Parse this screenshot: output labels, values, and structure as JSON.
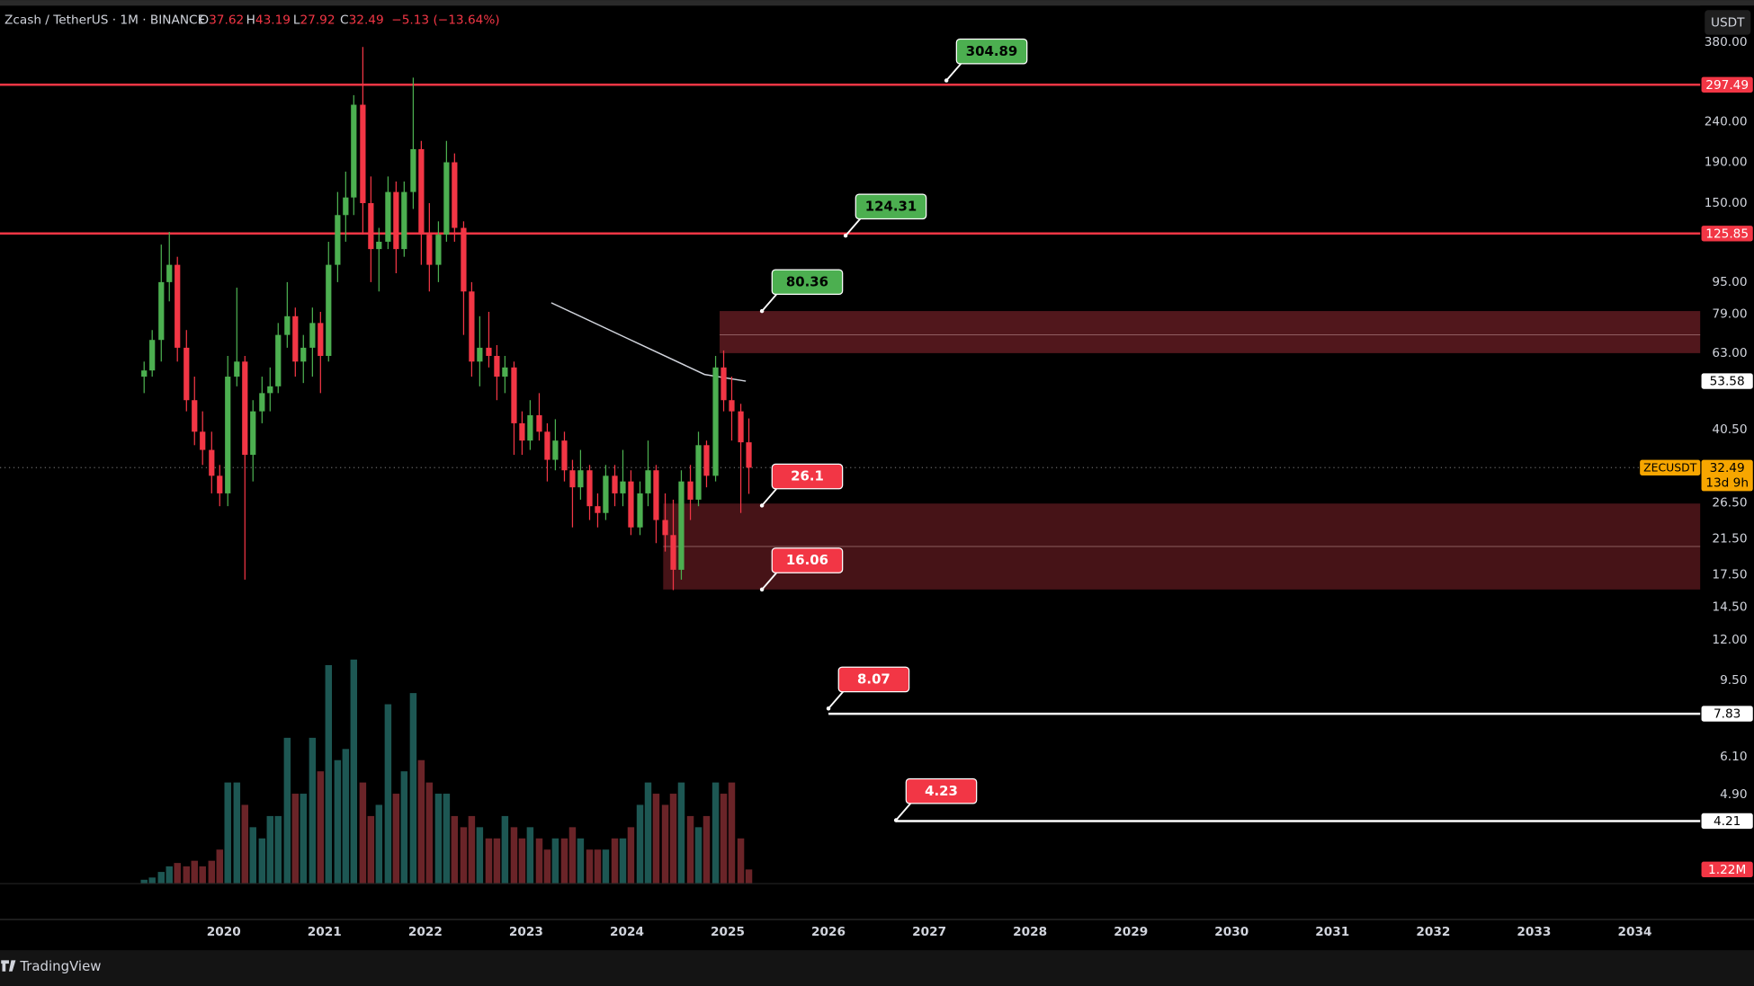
{
  "header": {
    "symbol": "Zcash / TetherUS · 1M · BINANCE",
    "ohlc": [
      {
        "key": "O",
        "value": 37.62
      },
      {
        "key": "H",
        "value": 43.19
      },
      {
        "key": "L",
        "value": 27.92
      },
      {
        "key": "C",
        "value": 32.49
      }
    ],
    "change": "−5.13 (−13.64%)"
  },
  "currency_button": "USDT",
  "brand": "TradingView",
  "chart_data": {
    "type": "candlestick",
    "x": [
      2019.21,
      2019.29,
      2019.38,
      2019.46,
      2019.54,
      2019.63,
      2019.71,
      2019.79,
      2019.88,
      2019.96,
      2020.04,
      2020.13,
      2020.21,
      2020.29,
      2020.38,
      2020.46,
      2020.54,
      2020.63,
      2020.71,
      2020.79,
      2020.88,
      2020.96,
      2021.04,
      2021.13,
      2021.21,
      2021.29,
      2021.38,
      2021.46,
      2021.54,
      2021.63,
      2021.71,
      2021.79,
      2021.88,
      2021.96,
      2022.04,
      2022.13,
      2022.21,
      2022.29,
      2022.38,
      2022.46,
      2022.54,
      2022.63,
      2022.71,
      2022.79,
      2022.88,
      2022.96,
      2023.04,
      2023.13,
      2023.21,
      2023.29,
      2023.38,
      2023.46,
      2023.54,
      2023.63,
      2023.71,
      2023.79,
      2023.88,
      2023.96,
      2024.04,
      2024.13,
      2024.21,
      2024.29,
      2024.38,
      2024.46,
      2024.54,
      2024.63,
      2024.71,
      2024.79,
      2024.88,
      2024.96,
      2025.04,
      2025.13,
      2025.21
    ],
    "open": [
      55,
      57,
      68,
      95,
      105,
      65,
      48,
      40,
      36,
      31,
      28,
      55,
      60,
      35,
      45,
      50,
      52,
      70,
      78,
      60,
      65,
      75,
      62,
      105,
      140,
      155,
      265,
      150,
      115,
      120,
      160,
      115,
      160,
      205,
      125,
      105,
      125,
      190,
      130,
      90,
      60,
      65,
      62,
      55,
      58,
      42,
      38,
      44,
      40,
      34,
      38,
      32,
      29,
      32,
      26,
      25,
      31,
      28,
      30,
      23,
      28,
      32,
      24,
      22,
      18,
      30,
      27,
      37,
      31,
      58,
      48,
      45,
      37.62
    ],
    "high": [
      60,
      72,
      118,
      127,
      110,
      72,
      55,
      45,
      40,
      33,
      62,
      92,
      62,
      48,
      55,
      58,
      75,
      95,
      82,
      70,
      82,
      80,
      120,
      160,
      180,
      280,
      370,
      175,
      130,
      175,
      170,
      170,
      310,
      215,
      150,
      135,
      215,
      200,
      135,
      95,
      78,
      80,
      66,
      62,
      60,
      45,
      48,
      50,
      42,
      43,
      40,
      34,
      36,
      33,
      28,
      33,
      33,
      36,
      32,
      30,
      38,
      33,
      28,
      27,
      32,
      33,
      40,
      38,
      62,
      64,
      55,
      47,
      43.19
    ],
    "low": [
      50,
      55,
      60,
      85,
      60,
      45,
      37,
      33,
      28,
      26,
      26,
      52,
      17,
      30,
      42,
      45,
      50,
      65,
      55,
      53,
      55,
      50,
      60,
      95,
      120,
      140,
      125,
      95,
      90,
      115,
      100,
      110,
      145,
      105,
      90,
      95,
      120,
      120,
      70,
      55,
      52,
      58,
      48,
      50,
      35,
      35,
      36,
      38,
      30,
      32,
      30,
      23,
      27,
      24,
      23,
      24,
      26,
      26,
      22,
      22,
      26,
      21,
      20,
      16,
      17,
      24,
      26,
      29,
      30,
      45,
      38,
      25,
      27.92
    ],
    "close": [
      57,
      68,
      95,
      105,
      65,
      48,
      40,
      36,
      31,
      28,
      55,
      60,
      35,
      45,
      50,
      52,
      70,
      78,
      60,
      65,
      75,
      62,
      105,
      140,
      155,
      265,
      150,
      115,
      120,
      160,
      115,
      160,
      205,
      125,
      105,
      125,
      190,
      130,
      90,
      60,
      65,
      62,
      55,
      58,
      42,
      38,
      44,
      40,
      34,
      38,
      32,
      29,
      32,
      26,
      25,
      31,
      28,
      30,
      23,
      28,
      32,
      24,
      22,
      18,
      30,
      27,
      37,
      31,
      58,
      48,
      45,
      37.62,
      32.49
    ],
    "up_color": "#4caf50",
    "down_color": "#f23645",
    "volume": {
      "values": [
        0.3,
        0.5,
        1,
        1.5,
        1.8,
        1.5,
        2,
        1.5,
        2,
        3,
        9,
        9,
        7,
        5,
        4,
        6,
        6,
        13,
        8,
        8,
        13,
        10,
        19.5,
        11,
        12,
        20,
        9,
        6,
        7,
        16,
        8,
        10,
        17,
        11,
        9,
        8,
        8,
        6,
        5,
        6,
        5,
        4,
        4,
        6,
        5,
        4,
        5,
        4,
        3,
        4,
        4,
        5,
        4,
        3,
        3,
        3,
        4,
        4,
        5,
        7,
        9,
        8,
        7,
        8,
        9,
        6,
        5,
        6,
        9,
        8,
        9,
        4,
        1.22
      ],
      "last_value_label": "1.22M",
      "vlim": [
        0,
        20
      ],
      "up_color": "#1d5753",
      "down_color": "#6a2428",
      "label_color": "#f23645"
    },
    "xlim": [
      2017.78,
      2034.65
    ],
    "xticks": [
      2020,
      2021,
      2022,
      2023,
      2024,
      2025,
      2026,
      2027,
      2028,
      2029,
      2030,
      2031,
      2032,
      2033,
      2034
    ],
    "ylim": [
      2.94,
      470
    ],
    "log_y": true,
    "yticks": [
      {
        "value": 380,
        "label": "380.00"
      },
      {
        "value": 240,
        "label": "240.00"
      },
      {
        "value": 190,
        "label": "190.00"
      },
      {
        "value": 150,
        "label": "150.00"
      },
      {
        "value": 95,
        "label": "95.00"
      },
      {
        "value": 79,
        "label": "79.00"
      },
      {
        "value": 63,
        "label": "63.00"
      },
      {
        "value": 40.5,
        "label": "40.50"
      },
      {
        "value": 26.5,
        "label": "26.50"
      },
      {
        "value": 21.5,
        "label": "21.50"
      },
      {
        "value": 17.5,
        "label": "17.50"
      },
      {
        "value": 14.5,
        "label": "14.50"
      },
      {
        "value": 12,
        "label": "12.00"
      },
      {
        "value": 9.5,
        "label": "9.50"
      },
      {
        "value": 6.1,
        "label": "6.10"
      },
      {
        "value": 4.9,
        "label": "4.90"
      }
    ],
    "levels": [
      {
        "value": 297.49,
        "color": "#f23645",
        "text_color": "#ffffff",
        "x_start": 2017.78
      },
      {
        "value": 125.85,
        "color": "#f23645",
        "text_color": "#ffffff",
        "x_start": 2017.78
      },
      {
        "value": 7.83,
        "color": "#ffffff",
        "text_color": "#000000",
        "x_start": 2026.0
      },
      {
        "value": 4.21,
        "color": "#ffffff",
        "text_color": "#000000",
        "x_start": 2026.67
      }
    ],
    "zones": [
      {
        "x_start": 2024.92,
        "top": 80.36,
        "bottom": 63,
        "mid": 70,
        "color": "#5a1a1f"
      },
      {
        "x_start": 2024.36,
        "top": 26.4,
        "bottom": 16.06,
        "mid": 20.6,
        "color": "#4e1519"
      }
    ],
    "callouts": [
      {
        "value": 304.89,
        "x": 2027.17,
        "color": "#4caf50",
        "text_color": "#000000"
      },
      {
        "value": 124.31,
        "x": 2026.17,
        "color": "#4caf50",
        "text_color": "#000000"
      },
      {
        "value": 80.36,
        "x": 2025.34,
        "color": "#4caf50",
        "text_color": "#000000"
      },
      {
        "value": 26.1,
        "x": 2025.34,
        "color": "#f23645",
        "text_color": "#ffffff"
      },
      {
        "value": 16.06,
        "x": 2025.34,
        "color": "#f23645",
        "text_color": "#ffffff"
      },
      {
        "value": 8.07,
        "x": 2026.0,
        "color": "#f23645",
        "text_color": "#ffffff"
      },
      {
        "value": 4.23,
        "x": 2026.67,
        "color": "#f23645",
        "text_color": "#ffffff"
      }
    ],
    "moving_average": {
      "x": [
        2023.25,
        2024.0,
        2024.77,
        2025.18
      ],
      "values": [
        84.3,
        68.7,
        55.7,
        53.58
      ],
      "color": "#d1d4dc"
    },
    "last_price": {
      "value": 32.49,
      "symbol": "ZECUSDT",
      "countdown": "13d 9h",
      "color": "#f7a600"
    }
  }
}
